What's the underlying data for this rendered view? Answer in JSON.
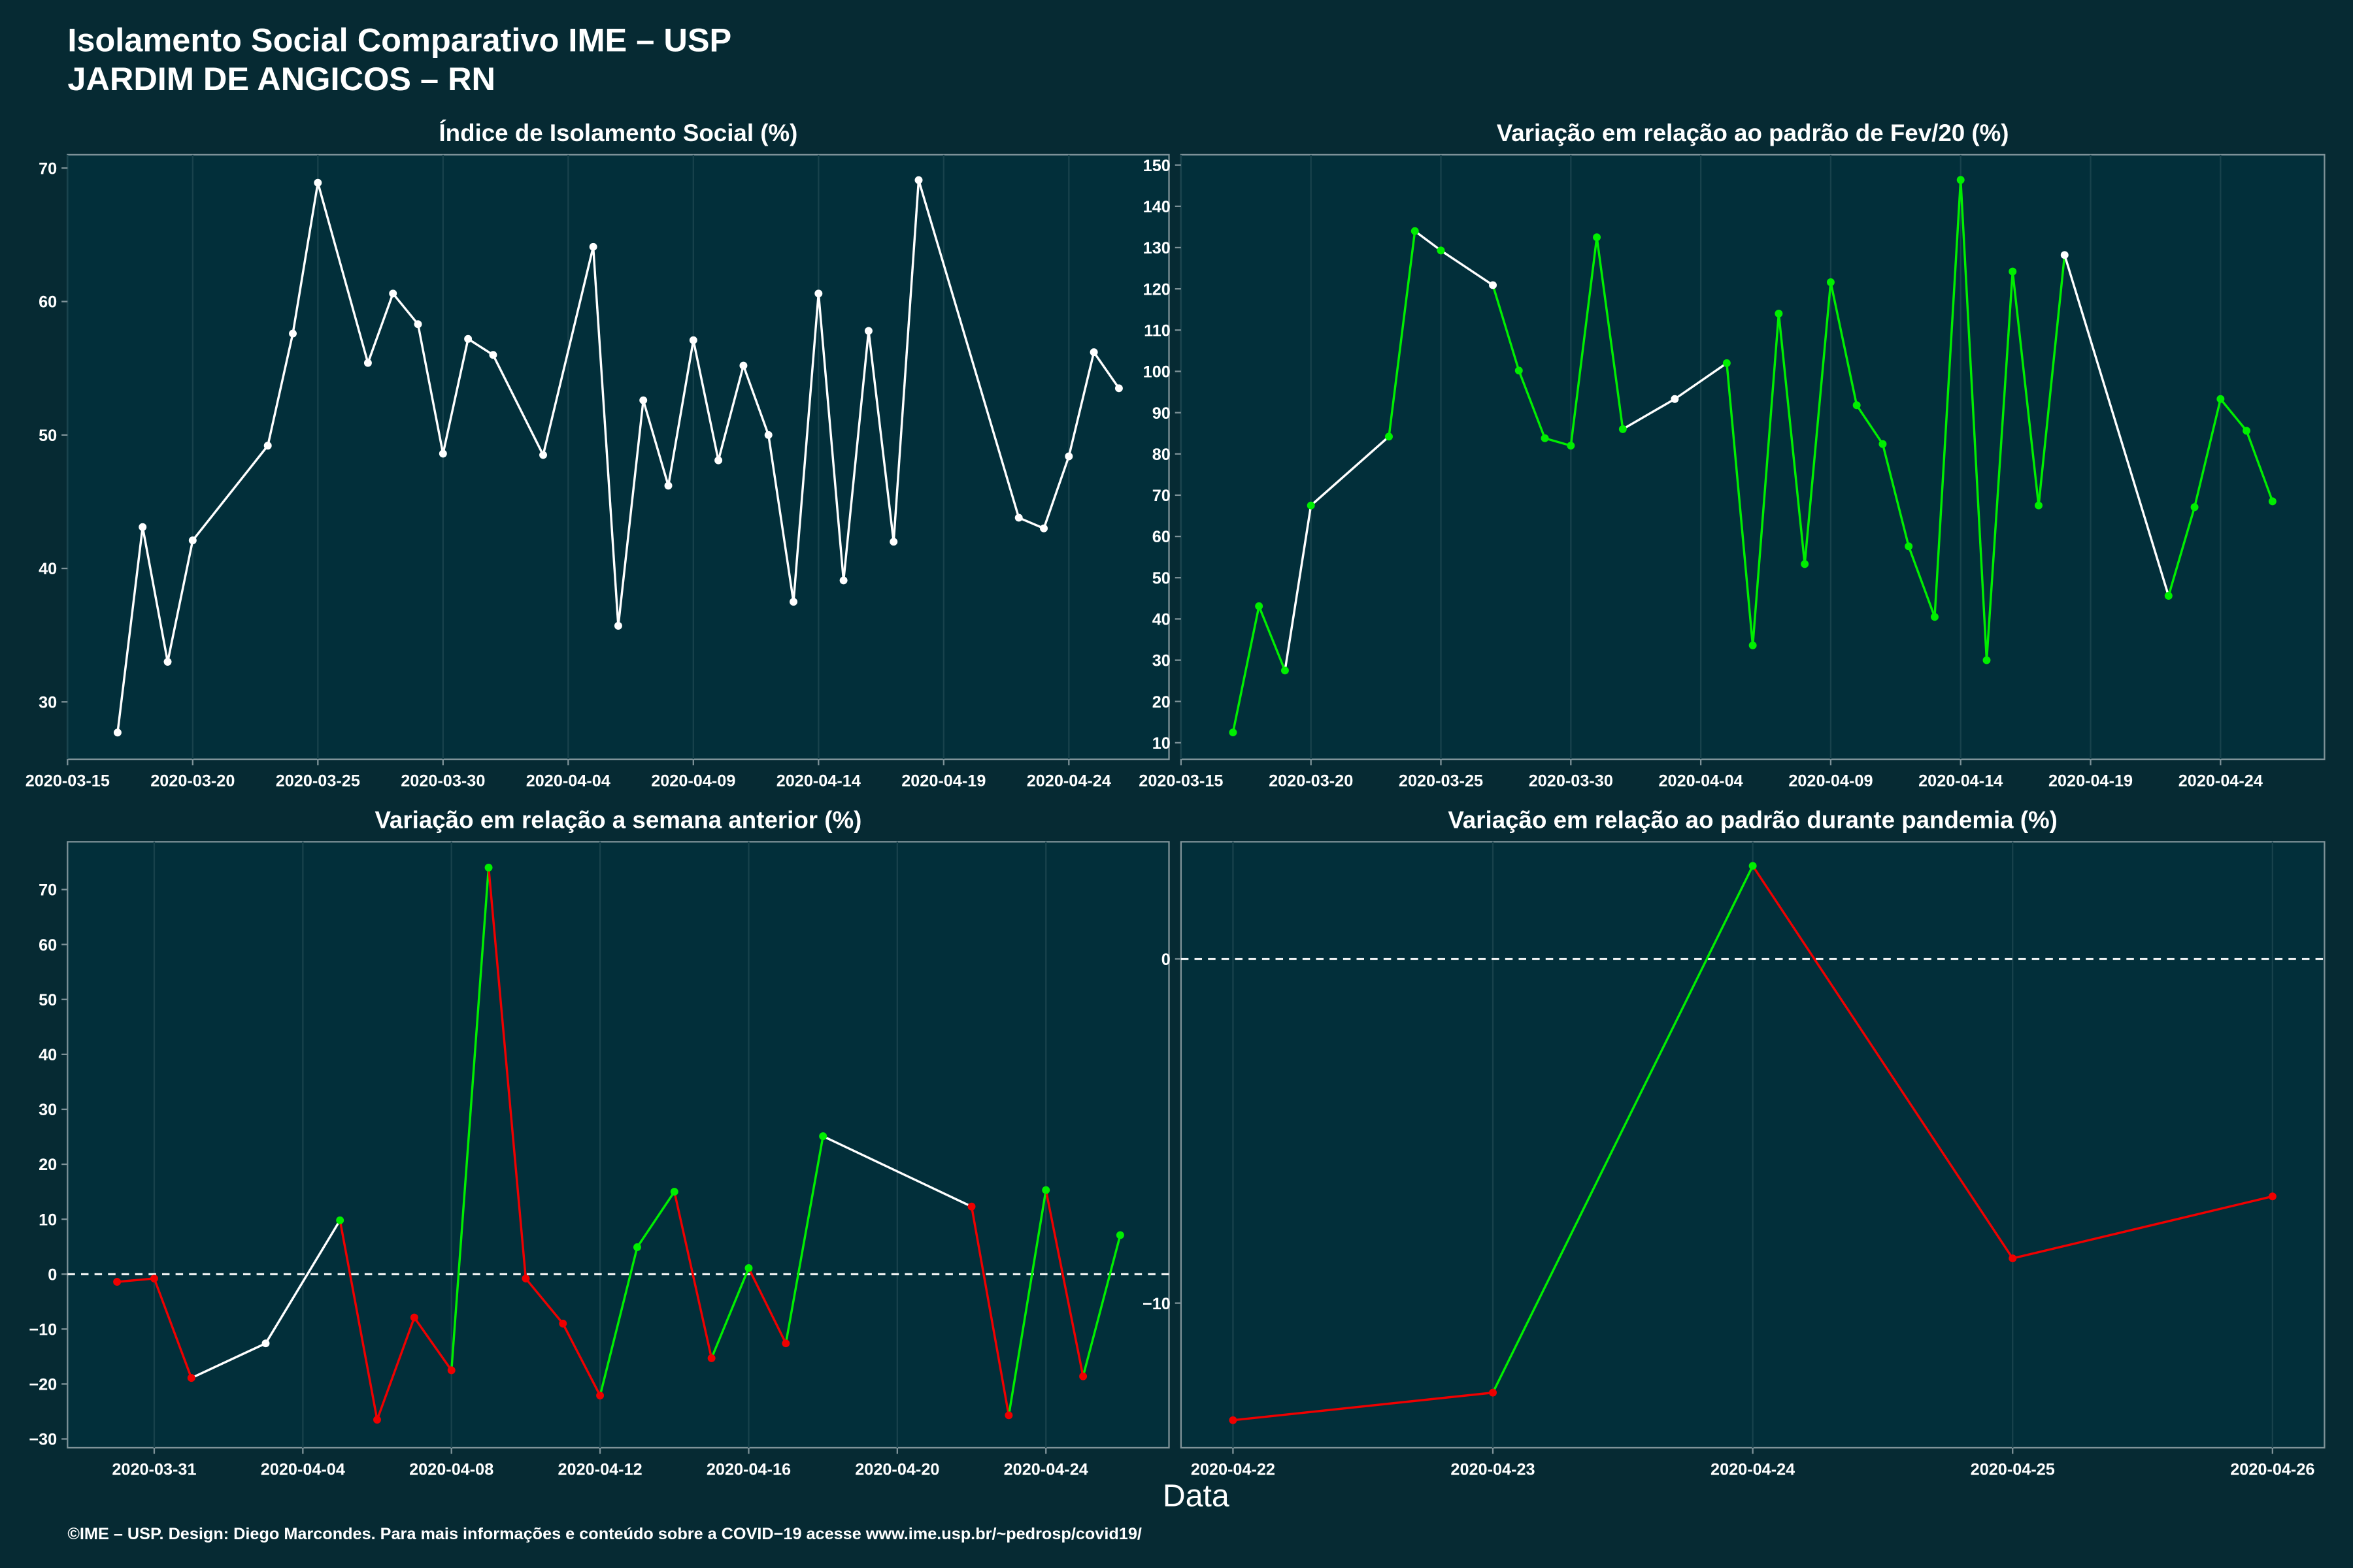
{
  "header": {
    "title": "Isolamento Social Comparativo IME – USP",
    "subtitle": "JARDIM DE ANGICOS – RN"
  },
  "xlabel": "Data",
  "footer": "©IME – USP. Design: Diego Marcondes. Para mais informações e conteúdo sobre a COVID−19 acesse www.ime.usp.br/~pedrosp/covid19/",
  "chart_data": [
    {
      "type": "line",
      "title": "Índice de Isolamento Social (%)",
      "x": [
        "2020-03-17",
        "2020-03-18",
        "2020-03-19",
        "2020-03-20",
        "2020-03-23",
        "2020-03-24",
        "2020-03-25",
        "2020-03-27",
        "2020-03-28",
        "2020-03-29",
        "2020-03-30",
        "2020-03-31",
        "2020-04-01",
        "2020-04-03",
        "2020-04-05",
        "2020-04-06",
        "2020-04-07",
        "2020-04-08",
        "2020-04-09",
        "2020-04-10",
        "2020-04-11",
        "2020-04-12",
        "2020-04-13",
        "2020-04-14",
        "2020-04-15",
        "2020-04-16",
        "2020-04-17",
        "2020-04-18",
        "2020-04-22",
        "2020-04-23",
        "2020-04-24",
        "2020-04-25",
        "2020-04-26"
      ],
      "series": [
        {
          "color": "#ffffff",
          "values": [
            27.7,
            43.1,
            33.0,
            42.1,
            49.2,
            57.6,
            68.9,
            55.4,
            60.6,
            58.3,
            48.6,
            57.2,
            56.0,
            48.5,
            64.1,
            35.7,
            52.6,
            46.2,
            57.1,
            48.1,
            55.2,
            50.0,
            37.5,
            60.6,
            39.1,
            57.8,
            42.0,
            69.1,
            43.8,
            43.0,
            48.4,
            56.2,
            53.5
          ]
        }
      ],
      "xlim": [
        "2020-03-15",
        "2020-04-28"
      ],
      "xticks": [
        "2020-03-15",
        "2020-03-20",
        "2020-03-25",
        "2020-03-30",
        "2020-04-04",
        "2020-04-09",
        "2020-04-14",
        "2020-04-19",
        "2020-04-24"
      ],
      "ylim": [
        25.7,
        71
      ],
      "yticks": [
        30,
        40,
        50,
        60,
        70
      ],
      "grid": true
    },
    {
      "type": "line",
      "title": "Variação em relação ao padrão de Fev/20 (%)",
      "x": [
        "2020-03-17",
        "2020-03-18",
        "2020-03-19",
        "2020-03-20",
        "2020-03-23",
        "2020-03-24",
        "2020-03-25",
        "2020-03-27",
        "2020-03-28",
        "2020-03-29",
        "2020-03-30",
        "2020-03-31",
        "2020-04-01",
        "2020-04-03",
        "2020-04-05",
        "2020-04-06",
        "2020-04-07",
        "2020-04-08",
        "2020-04-09",
        "2020-04-10",
        "2020-04-11",
        "2020-04-12",
        "2020-04-13",
        "2020-04-14",
        "2020-04-15",
        "2020-04-16",
        "2020-04-17",
        "2020-04-18",
        "2020-04-22",
        "2020-04-23",
        "2020-04-24",
        "2020-04-25",
        "2020-04-26"
      ],
      "series": [
        {
          "values": [
            12.5,
            43.1,
            27.5,
            67.5,
            84.2,
            134.0,
            129.3,
            120.9,
            100.2,
            83.8,
            82.0,
            132.5,
            86.0,
            93.3,
            102.0,
            33.6,
            114.0,
            53.3,
            121.6,
            91.8,
            82.4,
            57.6,
            40.5,
            146.4,
            30.0,
            124.2,
            67.5,
            128.2,
            45.6,
            67.1,
            93.3,
            85.6,
            68.5
          ],
          "point_colors": [
            "#00ee00",
            "#00ee00",
            "#00ee00",
            "#00ee00",
            "#00ee00",
            "#00ee00",
            "#00ee00",
            "#ffffff",
            "#00ee00",
            "#00ee00",
            "#00ee00",
            "#00ee00",
            "#00ee00",
            "#ffffff",
            "#00ee00",
            "#00ee00",
            "#00ee00",
            "#00ee00",
            "#00ee00",
            "#00ee00",
            "#00ee00",
            "#00ee00",
            "#00ee00",
            "#00ee00",
            "#00ee00",
            "#00ee00",
            "#00ee00",
            "#ffffff",
            "#00ee00",
            "#00ee00",
            "#00ee00",
            "#00ee00",
            "#00ee00"
          ],
          "segment_colors": [
            "#00ee00",
            "#00ee00",
            "#ffffff",
            "#ffffff",
            "#00ee00",
            "#ffffff",
            "#ffffff",
            "#00ee00",
            "#00ee00",
            "#00ee00",
            "#00ee00",
            "#00ee00",
            "#ffffff",
            "#ffffff",
            "#00ee00",
            "#00ee00",
            "#00ee00",
            "#00ee00",
            "#00ee00",
            "#00ee00",
            "#00ee00",
            "#00ee00",
            "#00ee00",
            "#00ee00",
            "#00ee00",
            "#00ee00",
            "#00ee00",
            "#ffffff",
            "#00ee00",
            "#00ee00",
            "#00ee00",
            "#00ee00"
          ]
        }
      ],
      "xlim": [
        "2020-03-15",
        "2020-04-28"
      ],
      "xticks": [
        "2020-03-15",
        "2020-03-20",
        "2020-03-25",
        "2020-03-30",
        "2020-04-04",
        "2020-04-09",
        "2020-04-14",
        "2020-04-19",
        "2020-04-24"
      ],
      "ylim": [
        6,
        152.5
      ],
      "yticks": [
        10,
        20,
        30,
        40,
        50,
        60,
        70,
        80,
        90,
        100,
        110,
        120,
        130,
        140,
        150
      ],
      "grid": true
    },
    {
      "type": "line",
      "title": "Variação em relação a semana anterior (%)",
      "x": [
        "2020-03-30",
        "2020-03-31",
        "2020-04-01",
        "2020-04-03",
        "2020-04-05",
        "2020-04-06",
        "2020-04-07",
        "2020-04-08",
        "2020-04-09",
        "2020-04-10",
        "2020-04-11",
        "2020-04-12",
        "2020-04-13",
        "2020-04-14",
        "2020-04-15",
        "2020-04-16",
        "2020-04-17",
        "2020-04-18",
        "2020-04-22",
        "2020-04-23",
        "2020-04-24",
        "2020-04-25",
        "2020-04-26"
      ],
      "series": [
        {
          "values": [
            -1.4,
            -0.8,
            -18.9,
            -12.6,
            9.8,
            -26.5,
            -7.9,
            -17.5,
            74.0,
            -0.8,
            -9.0,
            -22.1,
            4.9,
            15.0,
            -15.3,
            1.1,
            -12.6,
            25.1,
            12.3,
            -25.7,
            15.3,
            -18.6,
            7.1
          ],
          "point_colors": [
            "#ee0000",
            "#ee0000",
            "#ee0000",
            "#ffffff",
            "#00ee00",
            "#ee0000",
            "#ee0000",
            "#ee0000",
            "#00ee00",
            "#ee0000",
            "#ee0000",
            "#ee0000",
            "#00ee00",
            "#00ee00",
            "#ee0000",
            "#00ee00",
            "#ee0000",
            "#00ee00",
            "#ee0000",
            "#ee0000",
            "#00ee00",
            "#ee0000",
            "#00ee00"
          ],
          "segment_colors": [
            "#ee0000",
            "#ee0000",
            "#ffffff",
            "#ffffff",
            "#ee0000",
            "#ee0000",
            "#ee0000",
            "#00ee00",
            "#ee0000",
            "#ee0000",
            "#ee0000",
            "#00ee00",
            "#00ee00",
            "#ee0000",
            "#00ee00",
            "#ee0000",
            "#00ee00",
            "#ffffff",
            "#ee0000",
            "#00ee00",
            "#ee0000",
            "#00ee00"
          ]
        }
      ],
      "xlim": [
        "2020-03-28T16:00",
        "2020-04-27T07:30"
      ],
      "xticks": [
        "2020-03-31",
        "2020-04-04",
        "2020-04-08",
        "2020-04-12",
        "2020-04-16",
        "2020-04-20",
        "2020-04-24"
      ],
      "ylim": [
        -31.6,
        78.7
      ],
      "yticks": [
        {
          "value": -30,
          "label": "−30"
        },
        {
          "value": -20,
          "label": "−20"
        },
        {
          "value": -10,
          "label": "−10"
        },
        0,
        10,
        20,
        30,
        40,
        50,
        60,
        70
      ],
      "hline": 0,
      "grid": true
    },
    {
      "type": "line",
      "title": "Variação em relação ao padrão durante pandemia (%)",
      "x": [
        "2020-04-22",
        "2020-04-23",
        "2020-04-24",
        "2020-04-25",
        "2020-04-26"
      ],
      "series": [
        {
          "values": [
            -13.4,
            -12.6,
            2.7,
            -8.7,
            -6.9
          ],
          "point_colors": [
            "#ee0000",
            "#ee0000",
            "#00ee00",
            "#ee0000",
            "#ee0000"
          ],
          "segment_colors": [
            "#ee0000",
            "#00ee00",
            "#ee0000",
            "#ee0000"
          ]
        }
      ],
      "xlim": [
        "2020-04-21T19:12",
        "2020-04-26T04:48"
      ],
      "xticks": [
        "2020-04-22",
        "2020-04-23",
        "2020-04-24",
        "2020-04-25",
        "2020-04-26"
      ],
      "ylim": [
        -14.2,
        3.4
      ],
      "yticks": [
        {
          "value": -10,
          "label": "−10"
        },
        0
      ],
      "hline": 0,
      "grid": true
    }
  ]
}
